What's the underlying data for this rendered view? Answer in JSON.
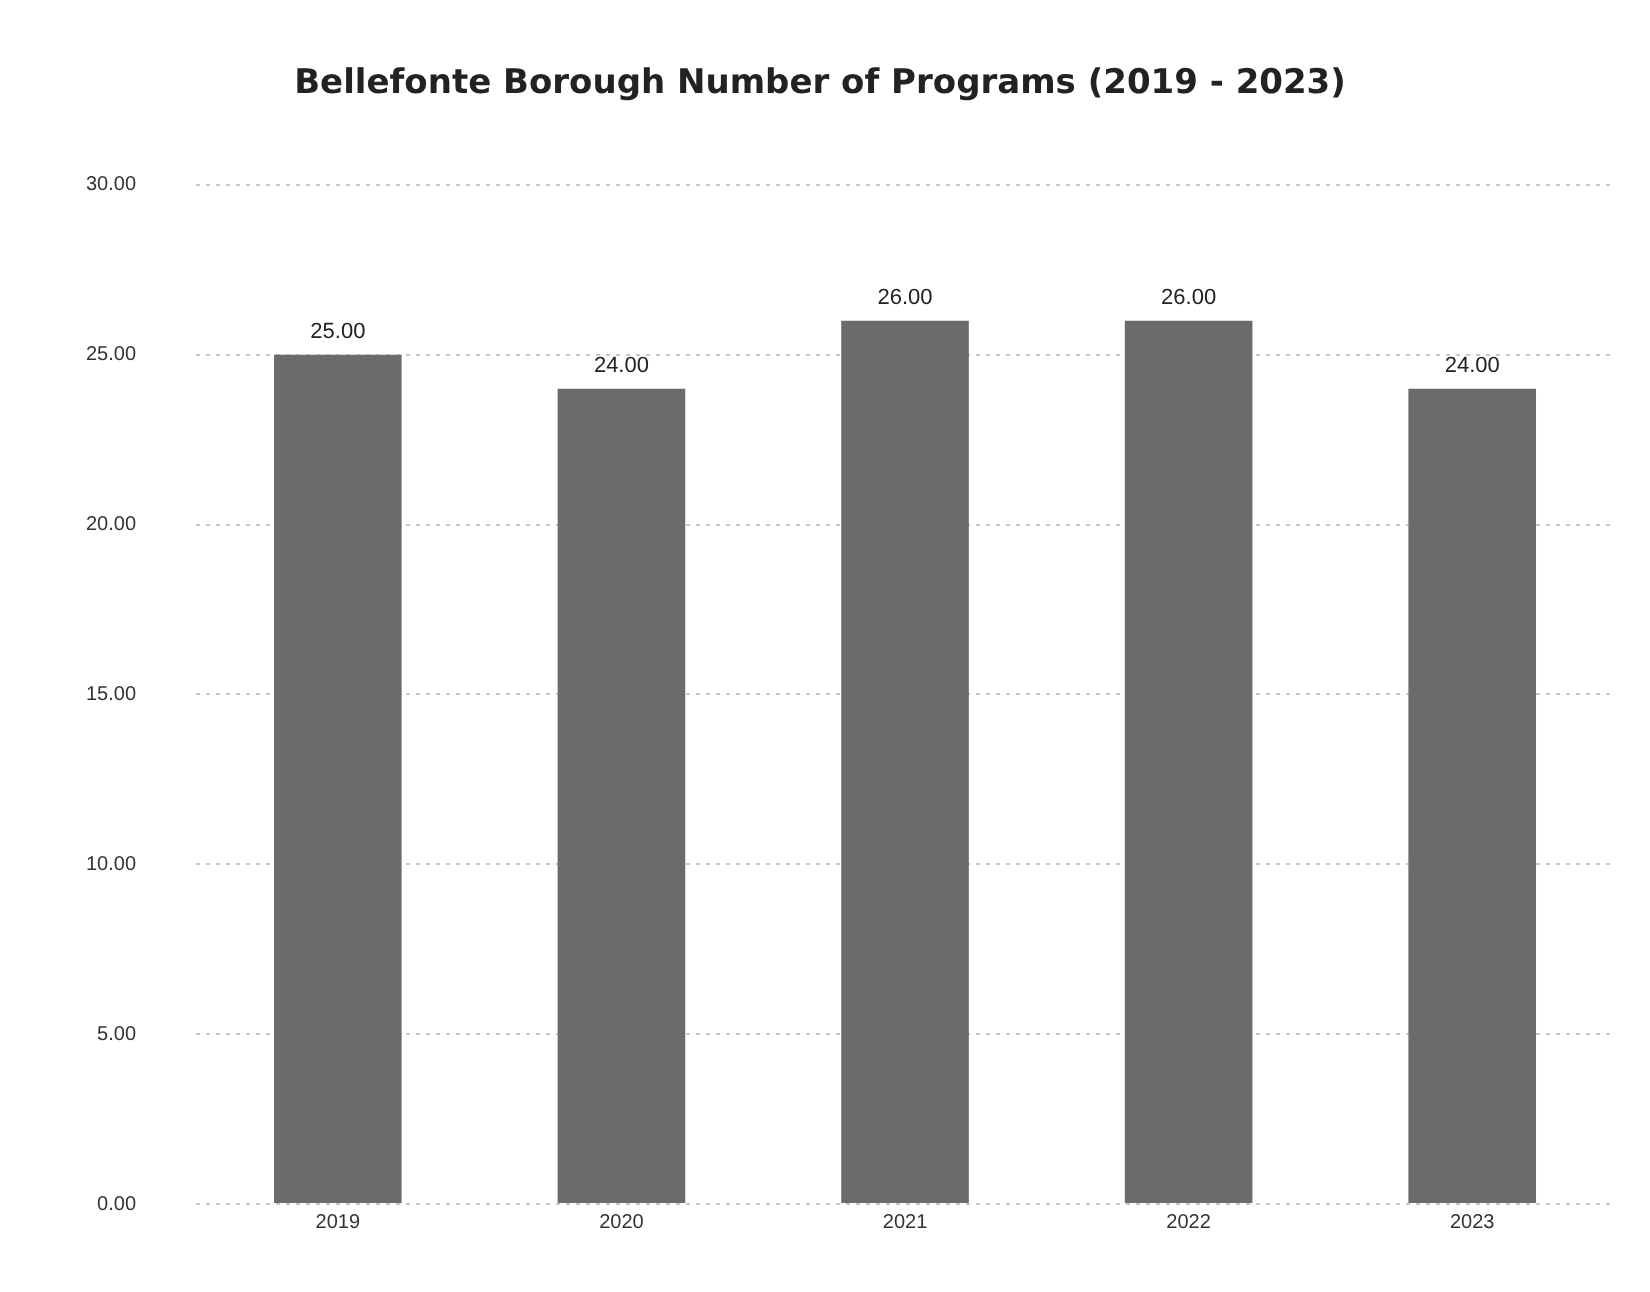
{
  "chart_data": {
    "type": "bar",
    "title": "Bellefonte Borough Number of Programs (2019 - 2023)",
    "categories": [
      "2019",
      "2020",
      "2021",
      "2022",
      "2023"
    ],
    "values": [
      25,
      24,
      26,
      26,
      24
    ],
    "value_labels": [
      "25.00",
      "24.00",
      "26.00",
      "26.00",
      "24.00"
    ],
    "color": "#6b6b6b",
    "ylim": [
      0,
      30
    ],
    "yticks": [
      {
        "value": 0,
        "label": "0.00"
      },
      {
        "value": 5,
        "label": "5.00"
      },
      {
        "value": 10,
        "label": "10.00"
      },
      {
        "value": 15,
        "label": "15.00"
      },
      {
        "value": 20,
        "label": "20.00"
      },
      {
        "value": 25,
        "label": "25.00"
      },
      {
        "value": 30,
        "label": "30.00"
      }
    ],
    "grid": "y",
    "legend": false
  }
}
